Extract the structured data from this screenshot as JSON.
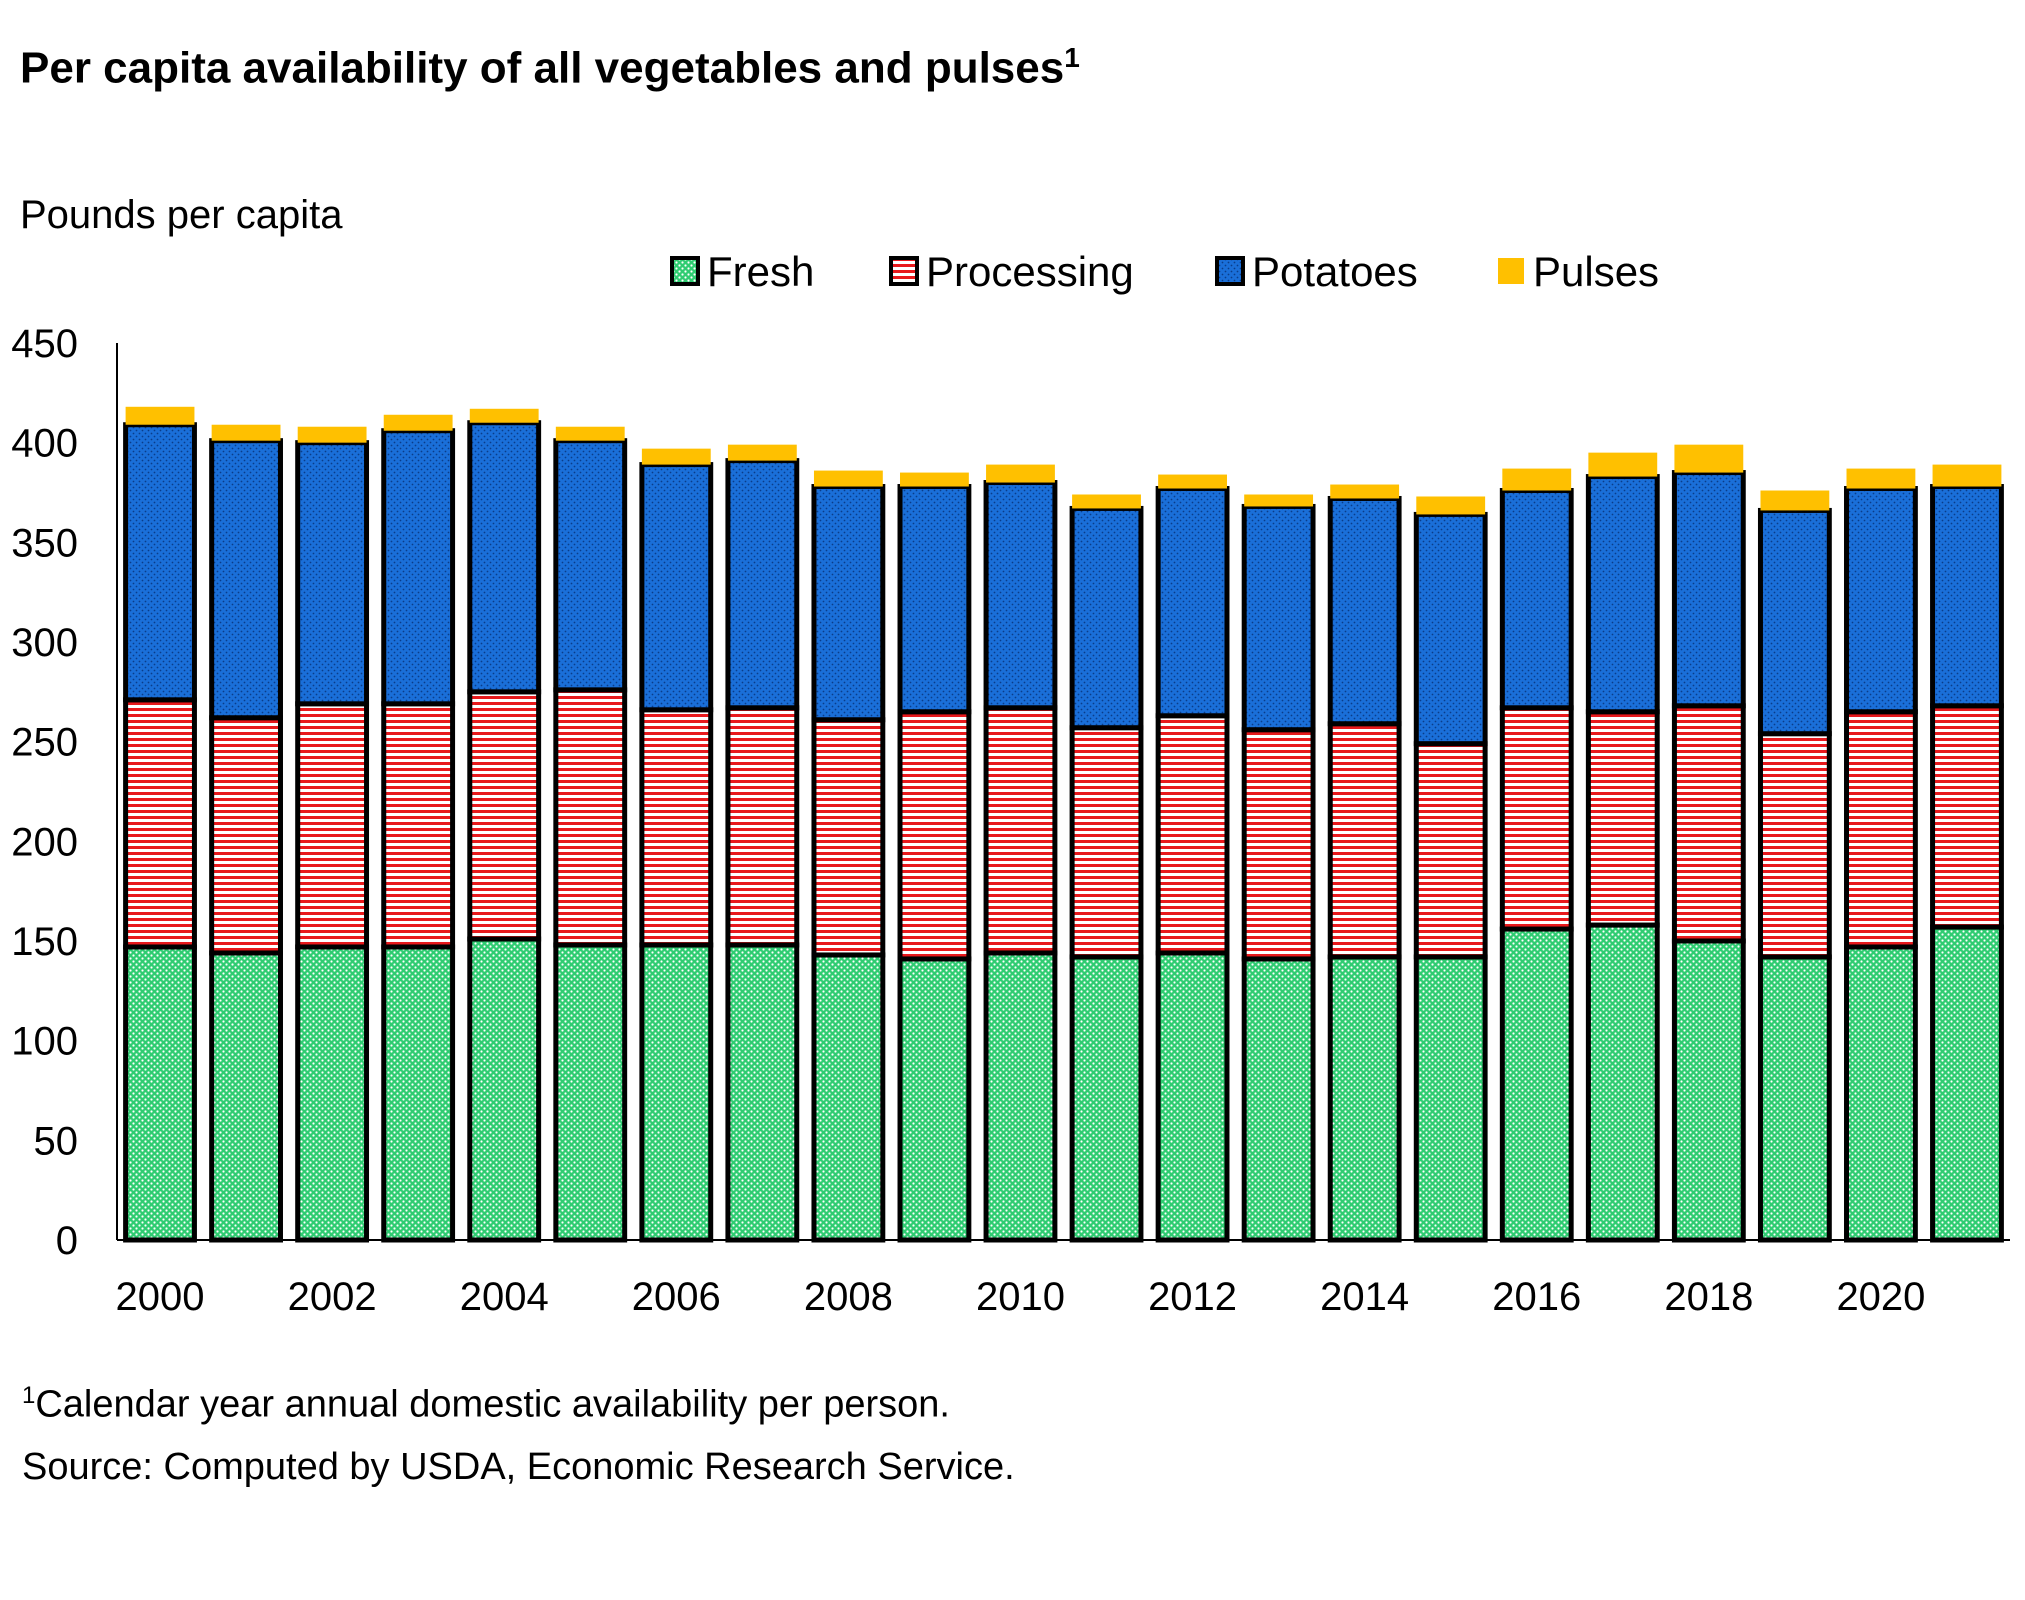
{
  "title": "Per capita availability of all vegetables and pulses",
  "title_footnote_marker": "1",
  "y_axis_label": "Pounds per capita",
  "footnote_marker": "1",
  "footnote": "Calendar year annual domestic availability per person.",
  "source": "Source: Computed by USDA, Economic Research Service.",
  "colors": {
    "fresh": "#2ecc71",
    "processing": "#e8191c",
    "potatoes": "#1a6fd9",
    "pulses": "#ffc000"
  },
  "chart_data": {
    "type": "bar",
    "stacked": true,
    "title": "Per capita availability of all vegetables and pulses",
    "xlabel": "",
    "ylabel": "Pounds per capita",
    "ylim": [
      0,
      450
    ],
    "yticks": [
      0,
      50,
      100,
      150,
      200,
      250,
      300,
      350,
      400,
      450
    ],
    "categories": [
      "2000",
      "2001",
      "2002",
      "2003",
      "2004",
      "2005",
      "2006",
      "2007",
      "2008",
      "2009",
      "2010",
      "2011",
      "2012",
      "2013",
      "2014",
      "2015",
      "2016",
      "2017",
      "2018",
      "2019",
      "2020",
      "2021"
    ],
    "xtick_labels": [
      "2000",
      "2002",
      "2004",
      "2006",
      "2008",
      "2010",
      "2012",
      "2014",
      "2016",
      "2018",
      "2020"
    ],
    "legend_position": "top",
    "series": [
      {
        "name": "Fresh",
        "key": "fresh",
        "values": [
          147,
          144,
          147,
          147,
          151,
          148,
          148,
          148,
          143,
          141,
          144,
          142,
          144,
          141,
          142,
          142,
          156,
          158,
          150,
          142,
          147,
          157
        ]
      },
      {
        "name": "Processing",
        "key": "processing",
        "values": [
          124,
          118,
          122,
          122,
          124,
          128,
          118,
          119,
          118,
          124,
          123,
          115,
          119,
          115,
          117,
          107,
          111,
          107,
          118,
          112,
          118,
          111
        ]
      },
      {
        "name": "Potatoes",
        "key": "potatoes",
        "values": [
          138,
          139,
          131,
          137,
          135,
          125,
          123,
          124,
          117,
          113,
          113,
          110,
          114,
          112,
          113,
          115,
          109,
          118,
          117,
          112,
          112,
          110
        ]
      },
      {
        "name": "Pulses",
        "key": "pulses",
        "values": [
          9,
          8,
          8,
          8,
          7,
          7,
          8,
          8,
          8,
          7,
          9,
          7,
          7,
          6,
          7,
          9,
          11,
          12,
          14,
          10,
          10,
          11
        ]
      }
    ]
  }
}
